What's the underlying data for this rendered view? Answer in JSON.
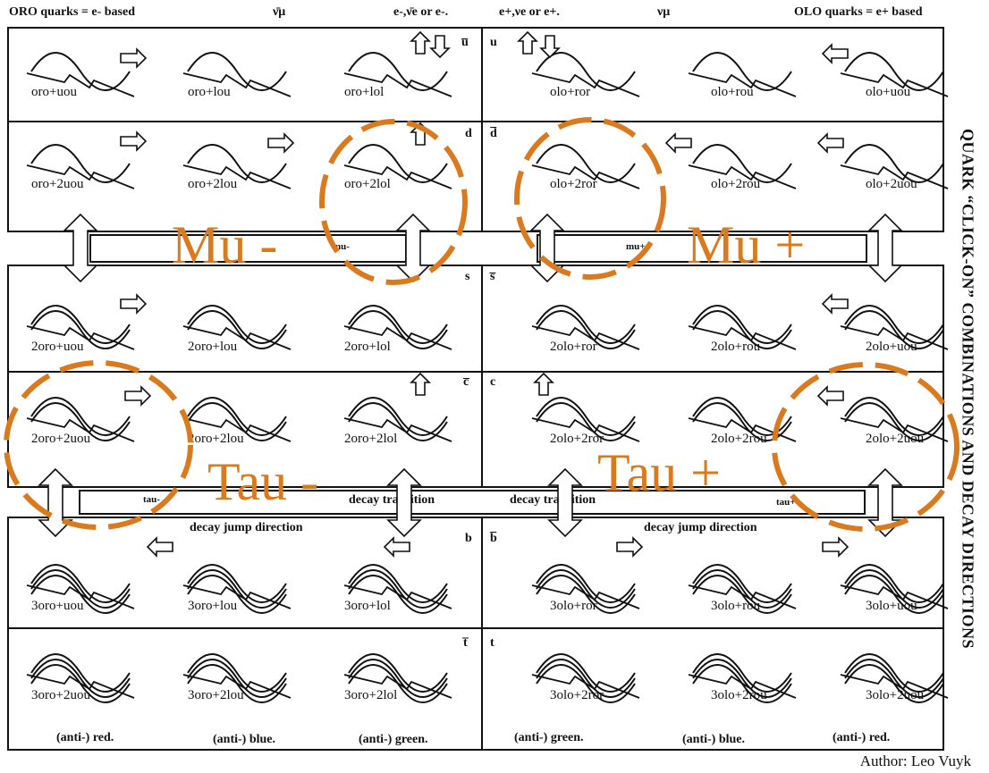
{
  "header": {
    "left": "ORO quarks = e- based",
    "nu_mu_bar": "ν̄μ",
    "e_left": "e-,ν̄e or e-.",
    "e_right": "e+,νe or e+.",
    "nu_mu": "νμ",
    "right": "OLO quarks = e+ based"
  },
  "side_title": "QUARK “CLICK-ON” COMBINATIONS AND DECAY DIRECTIONS",
  "flavors": {
    "u_bar": "u̅",
    "u": "u",
    "d": "d",
    "d_bar": "d̅",
    "s": "s",
    "s_bar": "s̅",
    "c_bar": "c̅",
    "c": "c",
    "b": "b",
    "b_bar": "b̅",
    "t_bar": "t̅",
    "t": "t"
  },
  "rows": [
    [
      "oro+uou",
      "oro+lou",
      "oro+lol",
      "olo+ror",
      "olo+rou",
      "olo+uou"
    ],
    [
      "oro+2uou",
      "oro+2lou",
      "oro+2lol",
      "olo+2ror",
      "olo+2rou",
      "olo+2uou"
    ],
    [
      "2oro+uou",
      "2oro+lou",
      "2oro+lol",
      "2olo+ror",
      "2olo+rou",
      "2olo+uou"
    ],
    [
      "2oro+2uou",
      "2oro+2lou",
      "2oro+2lol",
      "2olo+2ror",
      "2olo+2rou",
      "2olo+2uou"
    ],
    [
      "3oro+uou",
      "3oro+lou",
      "3oro+lol",
      "3olo+ror",
      "3olo+rou",
      "3olo+uou"
    ],
    [
      "3oro+2uou",
      "3oro+2lou",
      "3oro+2lol",
      "3olo+2ror",
      "3olo+2rou",
      "3olo+2uou"
    ]
  ],
  "bars": {
    "mu_minus": "mu-",
    "mu_plus": "mu+",
    "tau_minus": "tau-",
    "tau_plus": "tau+"
  },
  "middle": {
    "decay_transition_left": "decay transition",
    "decay_transition_right": "decay transition",
    "jump_left": "decay jump direction",
    "jump_right": "decay jump direction"
  },
  "colors_row": [
    "(anti-) red.",
    "(anti-) blue.",
    "(anti-) green.",
    "(anti-) green.",
    "(anti-) blue.",
    "(anti-) red."
  ],
  "overlays": {
    "mu_minus": "Mu -",
    "mu_plus": "Mu +",
    "tau_minus": "Tau -",
    "tau_plus": "Tau +"
  },
  "author": "Author: Leo Vuyk",
  "accent_color": "#d97a1f"
}
